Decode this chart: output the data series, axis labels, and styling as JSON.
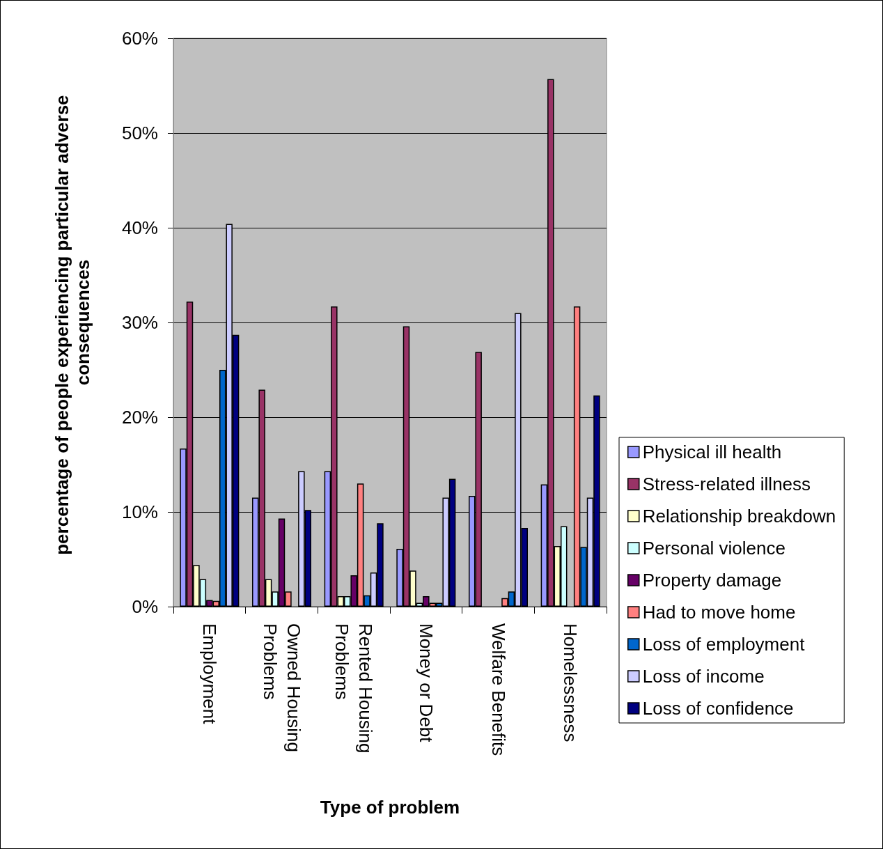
{
  "chart_data": {
    "type": "bar",
    "xlabel": "Type of problem",
    "ylabel": "percentage of people experiencing particular adverse consequences",
    "categories": [
      "Employment",
      "Owned Housing Problems",
      "Rented Housing Problems",
      "Money or Debt",
      "Welfare Benefits",
      "Homelessness"
    ],
    "series": [
      {
        "name": "Physical ill health",
        "color": "#9999ff",
        "values": [
          16.7,
          11.5,
          14.3,
          6.1,
          11.7,
          12.9
        ]
      },
      {
        "name": "Stress-related illness",
        "color": "#993366",
        "values": [
          32.2,
          22.9,
          31.7,
          29.6,
          26.9,
          55.7
        ]
      },
      {
        "name": "Relationship breakdown",
        "color": "#ffffcc",
        "values": [
          4.4,
          2.9,
          1.1,
          3.8,
          null,
          6.4
        ]
      },
      {
        "name": "Personal violence",
        "color": "#ccffff",
        "values": [
          2.9,
          1.6,
          1.1,
          0.4,
          null,
          8.5
        ]
      },
      {
        "name": "Property damage",
        "color": "#660066",
        "values": [
          0.7,
          9.3,
          3.3,
          1.1,
          null,
          null
        ]
      },
      {
        "name": "Had to move home",
        "color": "#ff8080",
        "values": [
          0.6,
          1.6,
          13.0,
          0.4,
          0.9,
          31.7
        ]
      },
      {
        "name": "Loss of employment",
        "color": "#0066cc",
        "values": [
          25.0,
          null,
          1.2,
          0.4,
          1.6,
          6.3
        ]
      },
      {
        "name": "Loss of income",
        "color": "#ccccff",
        "values": [
          40.4,
          14.3,
          3.6,
          11.5,
          31.0,
          11.5
        ]
      },
      {
        "name": "Loss of confidence",
        "color": "#000080",
        "values": [
          28.7,
          10.2,
          8.8,
          13.5,
          8.3,
          22.3
        ]
      }
    ],
    "ylim": [
      0,
      60
    ],
    "yticks": [
      {
        "value": 0,
        "label": "0%"
      },
      {
        "value": 10,
        "label": "10%"
      },
      {
        "value": 20,
        "label": "20%"
      },
      {
        "value": 30,
        "label": "30%"
      },
      {
        "value": 40,
        "label": "40%"
      },
      {
        "value": 50,
        "label": "50%"
      },
      {
        "value": 60,
        "label": "60%"
      }
    ],
    "grid": "y",
    "legend": "right"
  }
}
